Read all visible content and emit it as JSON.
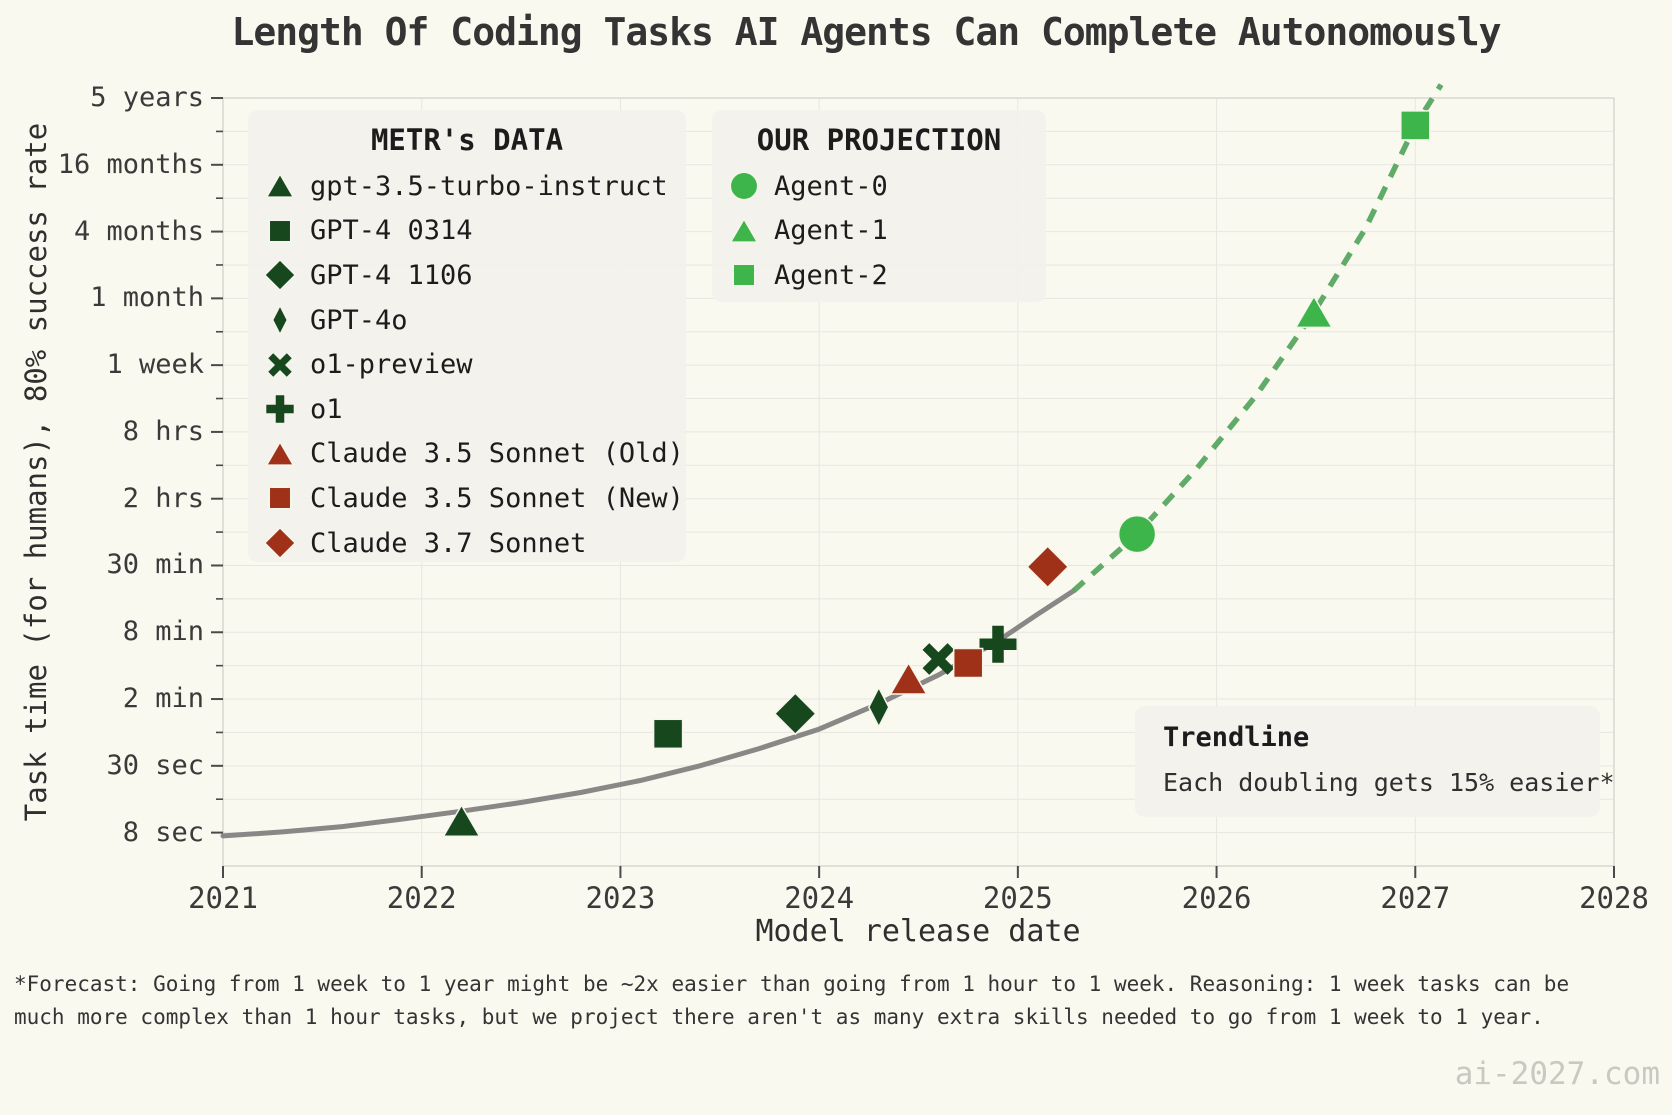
{
  "title": "Length Of Coding Tasks AI Agents Can Complete Autonomously",
  "axes": {
    "x_label": "Model release date",
    "y_label": "Task time (for humans), 80% success rate",
    "x_ticks": [
      {
        "label": "2021",
        "year": 2021
      },
      {
        "label": "2022",
        "year": 2022
      },
      {
        "label": "2023",
        "year": 2023
      },
      {
        "label": "2024",
        "year": 2024
      },
      {
        "label": "2025",
        "year": 2025
      },
      {
        "label": "2026",
        "year": 2026
      },
      {
        "label": "2027",
        "year": 2027
      },
      {
        "label": "2028",
        "year": 2028
      }
    ],
    "y_ticks": [
      {
        "label": "8 sec",
        "level": 0
      },
      {
        "label": "30 sec",
        "level": 1
      },
      {
        "label": "2 min",
        "level": 2
      },
      {
        "label": "8 min",
        "level": 3
      },
      {
        "label": "30 min",
        "level": 4
      },
      {
        "label": "2 hrs",
        "level": 5
      },
      {
        "label": "8 hrs",
        "level": 6
      },
      {
        "label": "1 week",
        "level": 7
      },
      {
        "label": "1 month",
        "level": 8
      },
      {
        "label": "4 months",
        "level": 9
      },
      {
        "label": "16 months",
        "level": 10
      },
      {
        "label": "5 years",
        "level": 11
      }
    ]
  },
  "legends": {
    "metr": {
      "title": "METR's DATA",
      "items": [
        {
          "label": "gpt-3.5-turbo-instruct",
          "marker": "triangle",
          "color": "#17471d"
        },
        {
          "label": "GPT-4 0314",
          "marker": "square",
          "color": "#17471d"
        },
        {
          "label": "GPT-4 1106",
          "marker": "diamond",
          "color": "#17471d"
        },
        {
          "label": "GPT-4o",
          "marker": "thin-diamond",
          "color": "#17471d"
        },
        {
          "label": "o1-preview",
          "marker": "x",
          "color": "#17471d"
        },
        {
          "label": "o1",
          "marker": "plus",
          "color": "#17471d"
        },
        {
          "label": "Claude 3.5 Sonnet (Old)",
          "marker": "triangle",
          "color": "#9e3118"
        },
        {
          "label": "Claude 3.5 Sonnet (New)",
          "marker": "square",
          "color": "#9e3118"
        },
        {
          "label": "Claude 3.7 Sonnet",
          "marker": "diamond",
          "color": "#9e3118"
        }
      ]
    },
    "projection": {
      "title": "OUR PROJECTION",
      "items": [
        {
          "label": "Agent-0",
          "marker": "circle",
          "color": "#3eb54b"
        },
        {
          "label": "Agent-1",
          "marker": "triangle",
          "color": "#3eb54b"
        },
        {
          "label": "Agent-2",
          "marker": "square",
          "color": "#3eb54b"
        }
      ]
    }
  },
  "trendline_box": {
    "title": "Trendline",
    "text": "Each doubling gets 15% easier*"
  },
  "footnote_line1": "*Forecast: Going from 1 week to 1 year might be ~2x easier than going from 1 hour to 1 week. Reasoning: 1 week tasks can be",
  "footnote_line2": "much more complex than 1 hour tasks, but we project there aren't as many extra skills needed to go from 1 week to 1 year.",
  "watermark": "ai-2027.com",
  "colors": {
    "background": "#faf9ef",
    "dark_green": "#17471d",
    "red": "#9e3118",
    "bright_green": "#3eb54b",
    "dash_green": "#57a65f",
    "trend_gray": "#848280",
    "grid": "#e7e6e1",
    "spine": "#d8d7d1",
    "tick": "#4a4a48",
    "text": "#2f2f2f",
    "box_bg": "#f2f1ec",
    "watermark": "#c9c8c1"
  },
  "chart_data": {
    "type": "scatter",
    "title": "Length Of Coding Tasks AI Agents Can Complete Autonomously",
    "xlabel": "Model release date",
    "ylabel": "Task time (for humans), 80% success rate",
    "x_range": [
      2021,
      2028
    ],
    "y_scale": "log; labeled ticks bottom-to-top: 8 sec, 30 sec, 2 min, 8 min, 30 min, 2 hrs, 8 hrs, 1 week, 1 month, 4 months, 16 months, 5 years (level = tick index)",
    "grid": "major and minor horizontal gridlines, yearly vertical gridlines",
    "series": [
      {
        "name": "METR's DATA",
        "points": [
          {
            "model": "gpt-3.5-turbo-instruct",
            "release_year": 2022.2,
            "task_time": "~10 sec",
            "level": 0.17,
            "marker": "triangle",
            "color": "#17471d"
          },
          {
            "model": "GPT-4 0314",
            "release_year": 2023.24,
            "task_time": "~1 min",
            "level": 1.48,
            "marker": "square",
            "color": "#17471d"
          },
          {
            "model": "GPT-4 1106",
            "release_year": 2023.88,
            "task_time": "~1.5 min",
            "level": 1.78,
            "marker": "diamond",
            "color": "#17471d"
          },
          {
            "model": "GPT-4o",
            "release_year": 2024.3,
            "task_time": "~1.7 min",
            "level": 1.88,
            "marker": "thin-diamond",
            "color": "#17471d"
          },
          {
            "model": "o1-preview",
            "release_year": 2024.6,
            "task_time": "~4.5 min",
            "level": 2.6,
            "marker": "x",
            "color": "#17471d"
          },
          {
            "model": "o1",
            "release_year": 2024.9,
            "task_time": "~6 min",
            "level": 2.82,
            "marker": "plus",
            "color": "#17471d"
          },
          {
            "model": "Claude 3.5 Sonnet (Old)",
            "release_year": 2024.45,
            "task_time": "~3 min",
            "level": 2.3,
            "marker": "triangle",
            "color": "#9e3118"
          },
          {
            "model": "Claude 3.5 Sonnet (New)",
            "release_year": 2024.75,
            "task_time": "~4 min",
            "level": 2.54,
            "marker": "square",
            "color": "#9e3118"
          },
          {
            "model": "Claude 3.7 Sonnet",
            "release_year": 2025.15,
            "task_time": "~30 min",
            "level": 3.98,
            "marker": "diamond",
            "color": "#9e3118"
          }
        ]
      },
      {
        "name": "OUR PROJECTION",
        "points": [
          {
            "model": "Agent-0",
            "release_year": 2025.6,
            "task_time": "~1 hr",
            "level": 4.47,
            "marker": "circle",
            "color": "#3eb54b"
          },
          {
            "model": "Agent-1",
            "release_year": 2026.49,
            "task_time": "~3 weeks",
            "level": 7.79,
            "marker": "triangle",
            "color": "#3eb54b"
          },
          {
            "model": "Agent-2",
            "release_year": 2027.0,
            "task_time": "~3 years",
            "level": 10.59,
            "marker": "square",
            "color": "#3eb54b"
          }
        ]
      }
    ],
    "trendline": {
      "note": "Each doubling gets 15% easier*",
      "solid_samples": [
        [
          2021.0,
          -0.05
        ],
        [
          2021.3,
          0.01
        ],
        [
          2021.6,
          0.09
        ],
        [
          2021.9,
          0.2
        ],
        [
          2022.2,
          0.32
        ],
        [
          2022.5,
          0.45
        ],
        [
          2022.8,
          0.6
        ],
        [
          2023.1,
          0.78
        ],
        [
          2023.4,
          1.0
        ],
        [
          2023.7,
          1.26
        ],
        [
          2024.0,
          1.55
        ],
        [
          2024.3,
          1.93
        ],
        [
          2024.6,
          2.36
        ],
        [
          2024.9,
          2.87
        ],
        [
          2025.1,
          3.27
        ],
        [
          2025.28,
          3.62
        ]
      ],
      "dashed_samples": [
        [
          2025.28,
          3.62
        ],
        [
          2025.6,
          4.47
        ],
        [
          2025.9,
          5.45
        ],
        [
          2026.2,
          6.55
        ],
        [
          2026.49,
          7.79
        ],
        [
          2026.75,
          9.05
        ],
        [
          2027.0,
          10.59
        ],
        [
          2027.13,
          11.2
        ]
      ]
    }
  }
}
